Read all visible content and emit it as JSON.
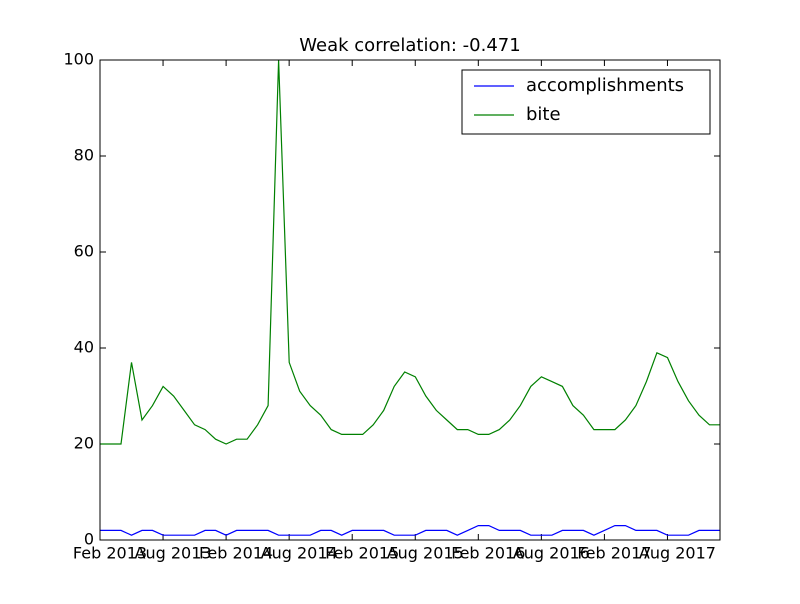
{
  "chart_data": {
    "type": "line",
    "title": "Weak correlation: -0.471",
    "x": [
      "2013-02",
      "2013-03",
      "2013-04",
      "2013-05",
      "2013-06",
      "2013-07",
      "2013-08",
      "2013-09",
      "2013-10",
      "2013-11",
      "2013-12",
      "2014-01",
      "2014-02",
      "2014-03",
      "2014-04",
      "2014-05",
      "2014-06",
      "2014-07",
      "2014-08",
      "2014-09",
      "2014-10",
      "2014-11",
      "2014-12",
      "2015-01",
      "2015-02",
      "2015-03",
      "2015-04",
      "2015-05",
      "2015-06",
      "2015-07",
      "2015-08",
      "2015-09",
      "2015-10",
      "2015-11",
      "2015-12",
      "2016-01",
      "2016-02",
      "2016-03",
      "2016-04",
      "2016-05",
      "2016-06",
      "2016-07",
      "2016-08",
      "2016-09",
      "2016-10",
      "2016-11",
      "2016-12",
      "2017-01",
      "2017-02",
      "2017-03",
      "2017-04",
      "2017-05",
      "2017-06",
      "2017-07",
      "2017-08",
      "2017-09",
      "2017-10",
      "2017-11",
      "2017-12",
      "2018-01"
    ],
    "series": [
      {
        "name": "accomplishments",
        "color": "#0000ff",
        "values": [
          2,
          2,
          2,
          1,
          2,
          2,
          1,
          1,
          1,
          1,
          2,
          2,
          1,
          2,
          2,
          2,
          2,
          1,
          1,
          1,
          1,
          2,
          2,
          1,
          2,
          2,
          2,
          2,
          1,
          1,
          1,
          2,
          2,
          2,
          1,
          2,
          3,
          3,
          2,
          2,
          2,
          1,
          1,
          1,
          2,
          2,
          2,
          1,
          2,
          3,
          3,
          2,
          2,
          2,
          1,
          1,
          1,
          2,
          2,
          2
        ]
      },
      {
        "name": "bite",
        "color": "#008000",
        "values": [
          20,
          20,
          20,
          37,
          25,
          28,
          32,
          30,
          27,
          24,
          23,
          21,
          20,
          21,
          21,
          24,
          28,
          100,
          37,
          31,
          28,
          26,
          23,
          22,
          22,
          22,
          24,
          27,
          32,
          35,
          34,
          30,
          27,
          25,
          23,
          23,
          22,
          22,
          23,
          25,
          28,
          32,
          34,
          33,
          32,
          28,
          26,
          23,
          23,
          23,
          25,
          28,
          33,
          39,
          38,
          33,
          29,
          26,
          24,
          24
        ]
      }
    ],
    "xlim": [
      "2013-02",
      "2018-01"
    ],
    "xticks": [
      {
        "value": "2013-02",
        "label": "Feb 2013"
      },
      {
        "value": "2013-08",
        "label": "Aug 2013"
      },
      {
        "value": "2014-02",
        "label": "Feb 2014"
      },
      {
        "value": "2014-08",
        "label": "Aug 2014"
      },
      {
        "value": "2015-02",
        "label": "Feb 2015"
      },
      {
        "value": "2015-08",
        "label": "Aug 2015"
      },
      {
        "value": "2016-02",
        "label": "Feb 2016"
      },
      {
        "value": "2016-08",
        "label": "Aug 2016"
      },
      {
        "value": "2017-02",
        "label": "Feb 2017"
      },
      {
        "value": "2017-08",
        "label": "Aug 2017"
      }
    ],
    "ylim": [
      0,
      100
    ],
    "yticks": [
      0,
      20,
      40,
      60,
      80,
      100
    ],
    "grid": false,
    "legend": "upper right"
  }
}
